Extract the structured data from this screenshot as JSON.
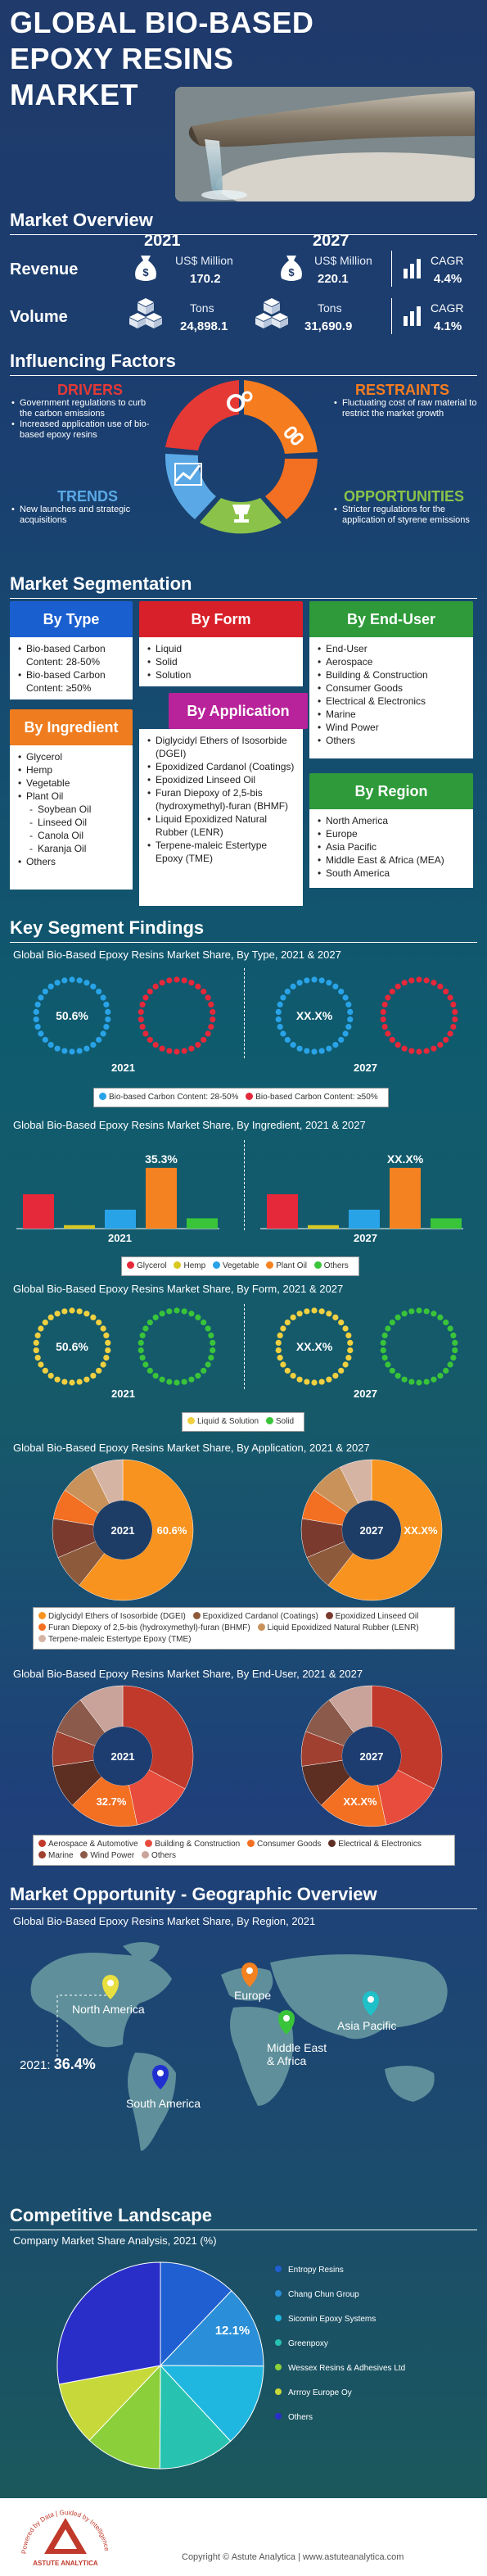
{
  "header": {
    "title_line1": "GLOBAL BIO-BASED",
    "title_line2": "EPOXY RESINS",
    "title_line3": "MARKET"
  },
  "overview": {
    "title": "Market Overview",
    "year1": "2021",
    "year2": "2027",
    "revenue_label": "Revenue",
    "revenue_unit": "US$ Million",
    "revenue_2021": "170.2",
    "revenue_2027": "220.1",
    "revenue_cagr_label": "CAGR",
    "revenue_cagr": "4.4%",
    "volume_label": "Volume",
    "volume_unit": "Tons",
    "volume_2021": "24,898.1",
    "volume_2027": "31,690.9",
    "volume_cagr_label": "CAGR",
    "volume_cagr": "4.1%",
    "icons": [
      "money-bag-icon",
      "cube-stack-icon",
      "bar-chart-icon"
    ]
  },
  "factors": {
    "title": "Influencing Factors",
    "drivers_title": "DRIVERS",
    "drivers": [
      "Government regulations to curb the carbon emissions",
      "Increased application use of bio-based epoxy resins"
    ],
    "restraints_title": "RESTRAINTS",
    "restraints": [
      "Fluctuating cost of raw material to restrict the market growth"
    ],
    "trends_title": "TRENDS",
    "trends": [
      "New launches and strategic acquisitions"
    ],
    "opportunities_title": "OPPORTUNITIES",
    "opportunities": [
      "Stricter regulations for the application of styrene emissions"
    ],
    "colors": {
      "drivers": "#e53935",
      "restraints": "#f57c1f",
      "trends": "#5aa9e6",
      "opportunities": "#8bc34a"
    }
  },
  "segmentation": {
    "title": "Market Segmentation",
    "by_type": {
      "title": "By Type",
      "items": [
        "Bio-based Carbon Content: 28-50%",
        "Bio-based Carbon Content: ≥50%"
      ]
    },
    "by_form": {
      "title": "By Form",
      "items": [
        "Liquid",
        "Solid",
        "Solution"
      ]
    },
    "by_end_user": {
      "title": "By End-User",
      "items": [
        "End-User",
        "Aerospace",
        "Building & Construction",
        "Consumer Goods",
        "Electrical & Electronics",
        "Marine",
        "Wind Power",
        "Others"
      ]
    },
    "by_ingredient": {
      "title": "By Ingredient",
      "items": [
        "Glycerol",
        "Hemp",
        "Vegetable",
        "Plant Oil"
      ],
      "sub_items": [
        "Soybean Oil",
        "Linseed Oil",
        "Canola Oil",
        "Karanja Oil"
      ],
      "last": "Others"
    },
    "by_application": {
      "title": "By Application",
      "items": [
        "Diglycidyl Ethers of Isosorbide (DGEI)",
        "Epoxidized Cardanol (Coatings)",
        "Epoxidized Linseed Oil",
        "Furan Diepoxy of 2,5-bis (hydroxymethyl)-furan (BHMF)",
        "Liquid Epoxidized Natural Rubber (LENR)",
        "Terpene-maleic Estertype Epoxy (TME)"
      ]
    },
    "by_region": {
      "title": "By Region",
      "items": [
        "North America",
        "Europe",
        "Asia Pacific",
        "Middle East & Africa (MEA)",
        "South America"
      ]
    }
  },
  "findings": {
    "title": "Key Segment Findings",
    "chart1_title": "Global Bio-Based Epoxy Resins Market Share, By Type, 2021 & 2027",
    "chart2_title": "Global Bio-Based Epoxy Resins Market Share, By Ingredient, 2021 & 2027",
    "chart3_title": "Global Bio-Based Epoxy Resins Market Share, By Form, 2021 & 2027",
    "chart4_title": "Global Bio-Based Epoxy Resins Market Share, By Application, 2021 & 2027",
    "chart5_title": "Global Bio-Based Epoxy Resins Market Share, By End-User, 2021 & 2027",
    "year_2021": "2021",
    "year_2027": "2027",
    "placeholder": "XX.X%"
  },
  "chart_data": [
    {
      "type": "pie",
      "title": "Global Bio-Based Epoxy Resins Market Share, By Type, 2021 & 2027",
      "categories": [
        "Bio-based Carbon Content: 28-50%",
        "Bio-based Carbon Content: ≥50%"
      ],
      "colors": [
        "#29a3e8",
        "#e5283a"
      ],
      "labels": {
        "2021": "50.6%",
        "2027": "XX.X%"
      }
    },
    {
      "type": "bar",
      "title": "Global Bio-Based Epoxy Resins Market Share, By Ingredient, 2021 & 2027",
      "categories": [
        "Glycerol",
        "Hemp",
        "Vegetable",
        "Plant Oil",
        "Others"
      ],
      "colors": [
        "#e5283a",
        "#d8c820",
        "#29a3e8",
        "#f58220",
        "#39c43a"
      ],
      "series": [
        {
          "name": "2021",
          "values": [
            20,
            2,
            11,
            35.3,
            6
          ]
        },
        {
          "name": "2027",
          "values": [
            20,
            2,
            11,
            35.3,
            6
          ]
        }
      ],
      "labels": {
        "2021": "35.3%",
        "2027": "XX.X%"
      }
    },
    {
      "type": "pie",
      "title": "Global Bio-Based Epoxy Resins Market Share, By Form, 2021 & 2027",
      "categories": [
        "Liquid & Solution",
        "Solid"
      ],
      "colors": [
        "#f0d040",
        "#39c43a"
      ],
      "labels": {
        "2021": "50.6%",
        "2027": "XX.X%"
      }
    },
    {
      "type": "pie",
      "title": "Global Bio-Based Epoxy Resins Market Share, By Application, 2021 & 2027",
      "categories": [
        "Diglycidyl Ethers of Isosorbide (DGEI)",
        "Epoxidized Cardanol (Coatings)",
        "Epoxidized Linseed Oil",
        "Furan Diepoxy of 2,5-bis (hydroxymethyl)-furan (BHMF)",
        "Liquid Epoxidized Natural Rubber (LENR)",
        "Terpene-maleic Estertype Epoxy (TME)"
      ],
      "colors": [
        "#f7931e",
        "#8e5a3c",
        "#7a3b2e",
        "#f36f21",
        "#c9925a",
        "#d6b4a4"
      ],
      "values": [
        60.6,
        8,
        9,
        7,
        8,
        7.4
      ],
      "labels": {
        "2021": "60.6%",
        "2027": "XX.X%"
      }
    },
    {
      "type": "pie",
      "title": "Global Bio-Based Epoxy Resins Market Share, By End-User, 2021 & 2027",
      "categories": [
        "Aerospace & Automotive",
        "Building & Construction",
        "Consumer Goods",
        "Electrical & Electronics",
        "Marine",
        "Wind Power",
        "Others"
      ],
      "colors": [
        "#c0392b",
        "#e74c3c",
        "#f36f21",
        "#5d2e22",
        "#a04030",
        "#8b5a4a",
        "#c9a39a"
      ],
      "values": [
        32.7,
        14,
        16,
        10,
        8,
        9,
        10.3
      ],
      "labels": {
        "2021": "32.7%",
        "2027": "XX.X%"
      }
    },
    {
      "type": "pie",
      "title": "Company Market Share Analysis, 2021 (%)",
      "categories": [
        "Entropy Resins",
        "Chang Chun Group",
        "Sicomin Epoxy Systems",
        "Greenpoxy",
        "Wessex Resins & Adhesives Ltd",
        "Arrroy Europe Oy",
        "Others"
      ],
      "colors": [
        "#1f5fd1",
        "#2a8fd8",
        "#1fb7e0",
        "#27c3b0",
        "#8bcf3a",
        "#c7d93a",
        "#2a2ec9"
      ],
      "values": [
        12.1,
        13,
        13,
        12,
        12,
        10,
        27.9
      ],
      "labels": {
        "Entropy Resins": "12.1%"
      }
    }
  ],
  "type_legend": [
    "Bio-based Carbon Content: 28-50%",
    "Bio-based Carbon Content: ≥50%"
  ],
  "ingredient_legend": [
    "Glycerol",
    "Hemp",
    "Vegetable",
    "Plant Oil",
    "Others"
  ],
  "form_legend": [
    "Liquid & Solution",
    "Solid"
  ],
  "application_legend": [
    "Diglycidyl Ethers of Isosorbide (DGEI)",
    "Epoxidized Cardanol (Coatings)",
    "Epoxidized Linseed Oil",
    "Furan Diepoxy of 2,5-bis (hydroxymethyl)-furan (BHMF)",
    "Liquid Epoxidized Natural Rubber (LENR)",
    "Terpene-maleic Estertype Epoxy (TME)"
  ],
  "enduser_legend": [
    "Aerospace & Automotive",
    "Building & Construction",
    "Consumer Goods",
    "Electrical & Electronics",
    "Marine",
    "Wind Power",
    "Others"
  ],
  "geo": {
    "title": "Market Opportunity - Geographic Overview",
    "chart_title": "Global Bio-Based Epoxy Resins Market Share, By Region, 2021",
    "north_america": "North America",
    "europe": "Europe",
    "asia_pacific": "Asia Pacific",
    "mea_line1": "Middle East",
    "mea_line2": "& Africa",
    "south_america": "South America",
    "share_year": "2021:",
    "share_value": "36.4%",
    "pin_colors": {
      "north_america": "#e8e040",
      "europe": "#f58220",
      "asia_pacific": "#20c0c8",
      "mea": "#39c43a",
      "south_america": "#2030d0"
    }
  },
  "competitive": {
    "title": "Competitive Landscape",
    "chart_title": "Company Market Share Analysis, 2021 (%)",
    "companies": [
      "Entropy Resins",
      "Chang Chun Group",
      "Sicomin Epoxy Systems",
      "Greenpoxy",
      "Wessex Resins & Adhesives Ltd",
      "Arrroy Europe Oy",
      "Others"
    ]
  },
  "footer": {
    "copyright": "Copyright © Astute Analytica | www.astuteanalytica.com",
    "logo_text": "ASTUTE ANALYTICA",
    "logo_arc": "Powered by Data | Guided by Intelligence"
  }
}
